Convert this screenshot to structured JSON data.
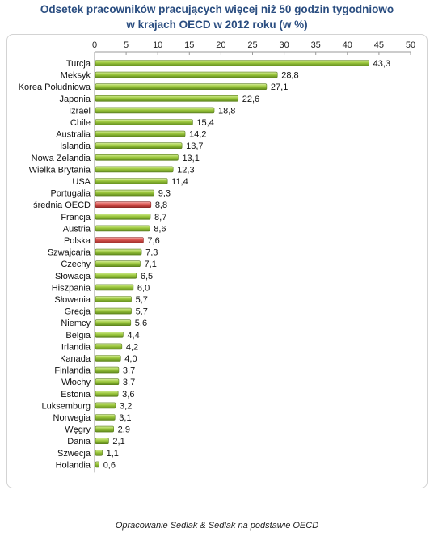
{
  "header": {
    "title_line1": "Odsetek pracowników pracujących więcej niż 50 godzin tygodniowo",
    "title_line2": "w krajach OECD w 2012  roku (w %)"
  },
  "footer": {
    "source": "Opracowanie Sedlak & Sedlak na podstawie OECD"
  },
  "colors": {
    "bar_default": "#9dc83e",
    "bar_highlight": "#d9534f",
    "title": "#2a4d80"
  },
  "chart_data": {
    "type": "bar",
    "orientation": "horizontal",
    "title": "Odsetek pracowników pracujących więcej niż 50 godzin tygodniowo w krajach OECD w 2012  roku (w %)",
    "xlim": [
      0,
      50
    ],
    "ticks": [
      "0",
      "5",
      "10",
      "15",
      "20",
      "25",
      "30",
      "35",
      "40",
      "45",
      "50"
    ],
    "tick_values": [
      0,
      5,
      10,
      15,
      20,
      25,
      30,
      35,
      40,
      45,
      50
    ],
    "axis_position": "top",
    "grid": false,
    "categories": [
      "Turcja",
      "Meksyk",
      "Korea Południowa",
      "Japonia",
      "Izrael",
      "Chile",
      "Australia",
      "Islandia",
      "Nowa Zelandia",
      "Wielka Brytania",
      "USA",
      "Portugalia",
      "średnia OECD",
      "Francja",
      "Austria",
      "Polska",
      "Szwajcaria",
      "Czechy",
      "Słowacja",
      "Hiszpania",
      "Słowenia",
      "Grecja",
      "Niemcy",
      "Belgia",
      "Irlandia",
      "Kanada",
      "Finlandia",
      "Włochy",
      "Estonia",
      "Luksemburg",
      "Norwegia",
      "Węgry",
      "Dania",
      "Szwecja",
      "Holandia"
    ],
    "values": [
      43.3,
      28.8,
      27.1,
      22.6,
      18.8,
      15.4,
      14.2,
      13.7,
      13.1,
      12.3,
      11.4,
      9.3,
      8.8,
      8.7,
      8.6,
      7.6,
      7.3,
      7.1,
      6.5,
      6.0,
      5.7,
      5.7,
      5.6,
      4.4,
      4.2,
      4.0,
      3.7,
      3.7,
      3.6,
      3.2,
      3.1,
      2.9,
      2.1,
      1.1,
      0.6
    ],
    "value_labels": [
      "43,3",
      "28,8",
      "27,1",
      "22,6",
      "18,8",
      "15,4",
      "14,2",
      "13,7",
      "13,1",
      "12,3",
      "11,4",
      "9,3",
      "8,8",
      "8,7",
      "8,6",
      "7,6",
      "7,3",
      "7,1",
      "6,5",
      "6,0",
      "5,7",
      "5,7",
      "5,6",
      "4,4",
      "4,2",
      "4,0",
      "3,7",
      "3,7",
      "3,6",
      "3,2",
      "3,1",
      "2,9",
      "2,1",
      "1,1",
      "0,6"
    ],
    "highlighted": [
      "średnia OECD",
      "Polska"
    ]
  }
}
